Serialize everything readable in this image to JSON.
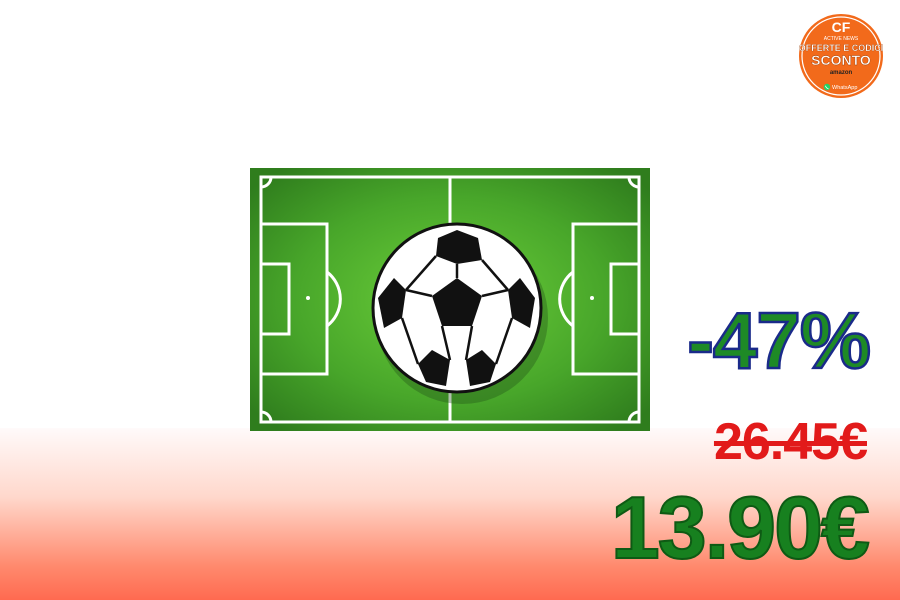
{
  "logo": {
    "initials": "CF",
    "tagline": "ACTIVE NEWS",
    "line1": "OFFERTE E CODICI",
    "line2": "SCONTO",
    "line3": "amazon",
    "line4": "WhatsApp",
    "icon": "whatsapp-icon",
    "colors": {
      "ring": "#ffffff",
      "fill": "#f26a1b"
    }
  },
  "product": {
    "icon": "soccer-ball-on-field-icon"
  },
  "deal": {
    "discount": "-47%",
    "old_price": "26.45€",
    "new_price": "13.90€",
    "colors": {
      "discount": "#1e8a26",
      "old_price": "#e21a1a",
      "new_price": "#17801f",
      "outline": "#1a2a8a"
    }
  }
}
